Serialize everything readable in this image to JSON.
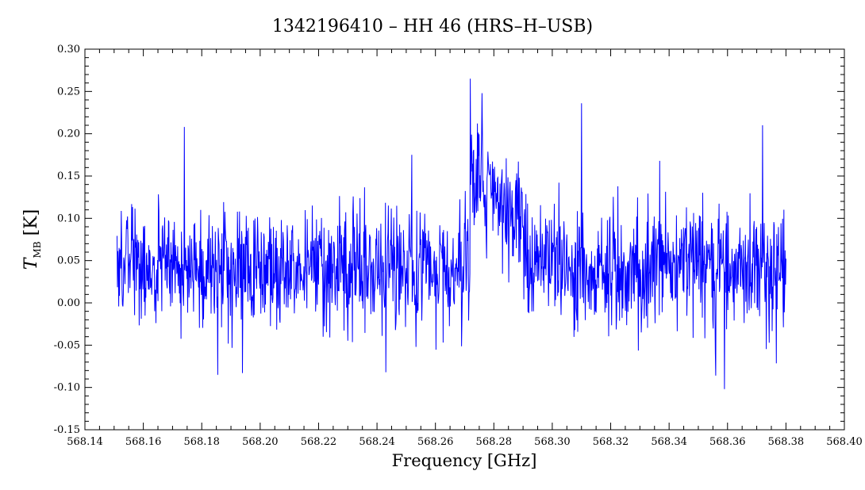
{
  "chart_data": {
    "type": "line",
    "title": "1342196410 – HH 46 (HRS–H–USB)",
    "xlabel": "Frequency [GHz]",
    "ylabel_main": "T",
    "ylabel_sub": "MB",
    "ylabel_unit": " [K]",
    "xlim": [
      568.14,
      568.4
    ],
    "ylim": [
      -0.15,
      0.3
    ],
    "x_ticks": [
      "568.14",
      "568.16",
      "568.18",
      "568.20",
      "568.22",
      "568.24",
      "568.26",
      "568.28",
      "568.30",
      "568.32",
      "568.34",
      "568.36",
      "568.38",
      "568.40"
    ],
    "y_ticks": [
      "-0.15",
      "-0.10",
      "-0.05",
      "0.00",
      "0.05",
      "0.10",
      "0.15",
      "0.20",
      "0.25",
      "0.30"
    ],
    "grid": false,
    "series": [
      {
        "color": "#0000ff",
        "x_start": 568.151,
        "x_end": 568.38,
        "baseline": 0.04,
        "noise_rms": 0.035,
        "line_feature": {
          "x_start": 568.272,
          "x_end": 568.29,
          "peak": 0.265,
          "level": 0.1
        },
        "spikes": [
          {
            "x": 568.174,
            "y": 0.208
          },
          {
            "x": 568.1855,
            "y": -0.085
          },
          {
            "x": 568.194,
            "y": -0.083
          },
          {
            "x": 568.243,
            "y": -0.082
          },
          {
            "x": 568.272,
            "y": 0.265
          },
          {
            "x": 568.276,
            "y": 0.248
          },
          {
            "x": 568.31,
            "y": 0.236
          },
          {
            "x": 568.356,
            "y": -0.086
          },
          {
            "x": 568.359,
            "y": -0.102
          },
          {
            "x": 568.372,
            "y": 0.21
          }
        ]
      }
    ]
  }
}
